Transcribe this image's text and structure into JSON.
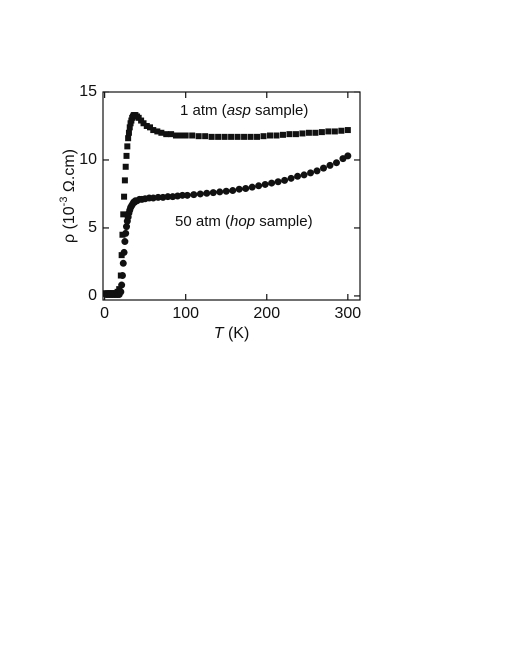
{
  "chart_data": {
    "type": "scatter",
    "x_label_parts": [
      "T",
      " (K)"
    ],
    "y_label_parts": [
      "ρ (10",
      "-3",
      " Ω.cm)"
    ],
    "annotations": [
      {
        "parts": [
          "1 atm (",
          "asp",
          " sample)"
        ]
      },
      {
        "parts": [
          "50 atm (",
          "hop",
          "  sample)"
        ]
      }
    ],
    "xlim": [
      -2,
      315
    ],
    "ylim": [
      -0.3,
      15
    ],
    "xticks": [
      0,
      100,
      200,
      300
    ],
    "yticks": [
      0,
      5,
      10,
      15
    ],
    "series": [
      {
        "name": "1 atm",
        "marker": "square",
        "color": "#111111",
        "x": [
          2,
          4,
          6,
          8,
          10,
          12,
          14,
          16,
          18,
          20,
          21,
          22,
          23,
          24,
          25,
          26,
          27,
          28,
          29,
          30,
          31,
          32,
          33,
          34,
          35,
          36,
          37,
          38,
          40,
          42,
          45,
          48,
          52,
          56,
          60,
          65,
          70,
          76,
          82,
          88,
          94,
          100,
          108,
          116,
          124,
          132,
          140,
          148,
          156,
          164,
          172,
          180,
          188,
          196,
          204,
          212,
          220,
          228,
          236,
          244,
          252,
          260,
          268,
          276,
          284,
          292,
          300
        ],
        "values": [
          0.2,
          0.2,
          0.2,
          0.2,
          0.2,
          0.2,
          0.2,
          0.3,
          0.5,
          1.5,
          3,
          4.5,
          6,
          7.3,
          8.5,
          9.5,
          10.3,
          11,
          11.6,
          12,
          12.4,
          12.7,
          12.9,
          13.1,
          13.2,
          13.3,
          13.3,
          13.3,
          13.2,
          13.1,
          12.9,
          12.7,
          12.5,
          12.4,
          12.2,
          12.1,
          12.0,
          11.9,
          11.9,
          11.8,
          11.8,
          11.8,
          11.8,
          11.75,
          11.75,
          11.7,
          11.7,
          11.7,
          11.7,
          11.7,
          11.7,
          11.7,
          11.7,
          11.75,
          11.8,
          11.8,
          11.85,
          11.9,
          11.9,
          11.95,
          12.0,
          12.0,
          12.05,
          12.1,
          12.1,
          12.15,
          12.2
        ]
      },
      {
        "name": "50 atm",
        "marker": "circle",
        "color": "#111111",
        "x": [
          2,
          4,
          6,
          8,
          10,
          12,
          14,
          16,
          18,
          20,
          21,
          22,
          23,
          24,
          25,
          26,
          27,
          28,
          29,
          30,
          31,
          32,
          33,
          34,
          35,
          36,
          37,
          38,
          40,
          43,
          46,
          50,
          55,
          60,
          66,
          72,
          78,
          84,
          90,
          96,
          102,
          110,
          118,
          126,
          134,
          142,
          150,
          158,
          166,
          174,
          182,
          190,
          198,
          206,
          214,
          222,
          230,
          238,
          246,
          254,
          262,
          270,
          278,
          286,
          294,
          300
        ],
        "values": [
          0.1,
          0.1,
          0.1,
          0.1,
          0.1,
          0.1,
          0.1,
          0.1,
          0.1,
          0.3,
          0.8,
          1.5,
          2.4,
          3.2,
          4,
          4.6,
          5.1,
          5.5,
          5.8,
          6.1,
          6.3,
          6.5,
          6.6,
          6.7,
          6.8,
          6.9,
          6.9,
          7.0,
          7.0,
          7.1,
          7.1,
          7.15,
          7.2,
          7.2,
          7.25,
          7.25,
          7.3,
          7.3,
          7.35,
          7.4,
          7.4,
          7.45,
          7.5,
          7.55,
          7.6,
          7.65,
          7.7,
          7.75,
          7.85,
          7.9,
          8.0,
          8.1,
          8.2,
          8.3,
          8.4,
          8.5,
          8.65,
          8.8,
          8.9,
          9.05,
          9.2,
          9.4,
          9.6,
          9.8,
          10.1,
          10.3
        ]
      }
    ]
  }
}
